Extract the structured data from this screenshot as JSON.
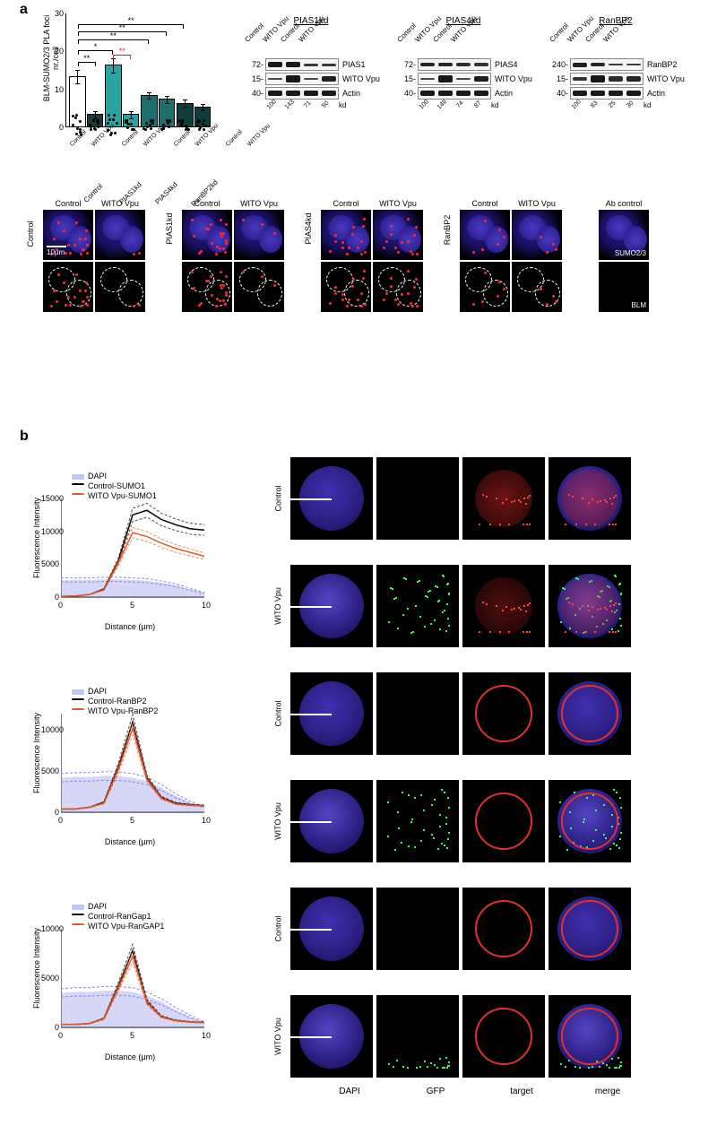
{
  "panel_a": {
    "label": "a",
    "bar_chart": {
      "type": "bar",
      "ylabel": "BLM-SUMO2/3\nPLA foci nr./cell",
      "ylim": [
        0,
        30
      ],
      "ytick_step": 10,
      "groups": [
        "Control",
        "PIAS1kd",
        "PIAS4kd",
        "RanBP2kd"
      ],
      "bar_labels": [
        "Control",
        "WITO Vpu"
      ],
      "colors": {
        "Control": [
          "#ffffff",
          "#1f3a3a"
        ],
        "PIAS1kd": [
          "#2aa3a3",
          "#2aa3a3"
        ],
        "PIAS4kd": [
          "#1f6f6f",
          "#1f6f6f"
        ],
        "RanBP2kd": [
          "#0e3d3d",
          "#0e3d3d"
        ]
      },
      "values": {
        "Control": {
          "Control": 13,
          "WITO Vpu": 3
        },
        "PIAS1kd": {
          "Control": 16,
          "WITO Vpu": 3
        },
        "PIAS4kd": {
          "Control": 8,
          "WITO Vpu": 7
        },
        "RanBP2kd": {
          "Control": 6,
          "WITO Vpu": 5
        }
      },
      "errors": {
        "Control": {
          "Control": 2,
          "WITO Vpu": 1
        },
        "PIAS1kd": {
          "Control": 2,
          "WITO Vpu": 1
        },
        "PIAS4kd": {
          "Control": 1,
          "WITO Vpu": 1
        },
        "RanBP2kd": {
          "Control": 1,
          "WITO Vpu": 1
        }
      },
      "n_points": 10,
      "significance": [
        {
          "from": 0,
          "to": 1,
          "label": "**",
          "y": 17,
          "color": "#000"
        },
        {
          "from": 0,
          "to": 2,
          "label": "*",
          "y": 20,
          "color": "#000"
        },
        {
          "from": 2,
          "to": 3,
          "label": "**",
          "y": 19,
          "color": "#d62728"
        },
        {
          "from": 0,
          "to": 4,
          "label": "**",
          "y": 23,
          "color": "#000"
        },
        {
          "from": 0,
          "to": 5,
          "label": "**",
          "y": 25,
          "color": "#000"
        },
        {
          "from": 0,
          "to": 6,
          "label": "**",
          "y": 27,
          "color": "#000"
        }
      ]
    },
    "blots": [
      {
        "title": "PIAS1kd",
        "lanes": [
          "Control",
          "WITO Vpu",
          "Control",
          "WITO Vpu"
        ],
        "rows": [
          {
            "mw": "72-",
            "label": "PIAS1",
            "intensity": [
              0.9,
              0.9,
              0.4,
              0.4
            ],
            "h": 5
          },
          {
            "mw": "15-",
            "label": "WITO Vpu",
            "intensity": [
              0.1,
              0.95,
              0.1,
              0.8
            ],
            "h": 7
          },
          {
            "mw": "40-",
            "label": "Actin",
            "intensity": [
              0.9,
              0.9,
              0.9,
              0.9
            ],
            "h": 6
          }
        ],
        "kd_values": [
          "100",
          "143",
          "71",
          "50"
        ],
        "kd_label": "kd"
      },
      {
        "title": "PIAS4kd",
        "lanes": [
          "Control",
          "WITO Vpu",
          "Control",
          "WITO Vpu"
        ],
        "rows": [
          {
            "mw": "72-",
            "label": "PIAS4",
            "intensity": [
              0.7,
              0.7,
              0.55,
              0.5
            ],
            "h": 5
          },
          {
            "mw": "15-",
            "label": "WITO Vpu",
            "intensity": [
              0.1,
              0.95,
              0.1,
              0.85
            ],
            "h": 7
          },
          {
            "mw": "40-",
            "label": "Actin",
            "intensity": [
              0.9,
              0.9,
              0.9,
              0.9
            ],
            "h": 6
          }
        ],
        "kd_values": [
          "100",
          "149",
          "74",
          "87"
        ],
        "kd_label": "kd"
      },
      {
        "title": "RanBP2",
        "lanes": [
          "Control",
          "WITO Vpu",
          "Control",
          "WITO Vpu"
        ],
        "rows": [
          {
            "mw": "240-",
            "label": "RanBP2",
            "intensity": [
              0.8,
              0.7,
              0.35,
              0.3
            ],
            "h": 5
          },
          {
            "mw": "15-",
            "label": "WITO Vpu",
            "intensity": [
              0.5,
              0.95,
              0.6,
              0.7
            ],
            "h": 7
          },
          {
            "mw": "40-",
            "label": "Actin",
            "intensity": [
              0.9,
              0.9,
              0.9,
              0.9
            ],
            "h": 6
          }
        ],
        "kd_values": [
          "100",
          "83",
          "25",
          "30"
        ],
        "kd_label": "kd"
      }
    ],
    "micrographs": {
      "scale_label": "10µm",
      "groups": [
        "Control",
        "PIAS1kd",
        "PIAS4kd",
        "RanBP2"
      ],
      "cols": [
        "Control",
        "WITO Vpu"
      ],
      "ab_panel": {
        "label": "Ab control",
        "top": "SUMO2/3",
        "bottom": "BLM"
      },
      "foci_counts": {
        "Control": {
          "Control": 18,
          "WITO Vpu": 2
        },
        "PIAS1kd": {
          "Control": 20,
          "WITO Vpu": 3
        },
        "PIAS4kd": {
          "Control": 15,
          "WITO Vpu": 14
        },
        "RanBP2": {
          "Control": 6,
          "WITO Vpu": 4
        }
      }
    }
  },
  "panel_b": {
    "label": "b",
    "plots": [
      {
        "legend": [
          "DAPI",
          "Control-SUMO1",
          "WITO Vpu-SUMO1"
        ],
        "colors": {
          "DAPI": "#8a8ae6",
          "Control": "#000000",
          "WITO": "#e55a2b"
        },
        "ylabel": "Fluorescence Intensity",
        "xlabel": "Distance (µm)",
        "xlim": [
          0,
          10
        ],
        "ylim": [
          0,
          15000
        ],
        "yticks": [
          0,
          5000,
          10000,
          15000
        ],
        "dapi": [
          2600,
          2600,
          2600,
          2700,
          2700,
          2600,
          2500,
          2200,
          1800,
          1200,
          600
        ],
        "control": [
          100,
          150,
          400,
          1200,
          5500,
          12500,
          13200,
          11800,
          11000,
          10400,
          10200
        ],
        "wito": [
          100,
          150,
          400,
          1100,
          5200,
          9800,
          9200,
          8200,
          7400,
          6800,
          6200
        ]
      },
      {
        "legend": [
          "DAPI",
          "Control-RanBP2",
          "WITO Vpu-RanBP2"
        ],
        "colors": {
          "DAPI": "#8a8ae6",
          "Control": "#000000",
          "WITO": "#e55a2b"
        },
        "ylabel": "Fluorescence Intensity",
        "xlabel": "Distance (µm)",
        "xlim": [
          0,
          10
        ],
        "ylim": [
          0,
          12000
        ],
        "yticks": [
          0,
          5000,
          10000
        ],
        "dapi": [
          4200,
          4300,
          4300,
          4400,
          4400,
          4200,
          3800,
          3000,
          2000,
          1200,
          600
        ],
        "control": [
          400,
          400,
          600,
          1200,
          5500,
          11000,
          4200,
          1800,
          1100,
          900,
          800
        ],
        "wito": [
          400,
          400,
          600,
          1100,
          5200,
          10200,
          4000,
          1700,
          1000,
          850,
          750
        ]
      },
      {
        "legend": [
          "DAPI",
          "Control-RanGap1",
          "WITO Vpu-RanGAP1"
        ],
        "colors": {
          "DAPI": "#8a8ae6",
          "Control": "#000000",
          "WITO": "#e55a2b"
        },
        "ylabel": "Fluorescence Intensity",
        "xlabel": "Distance (µm)",
        "xlim": [
          0,
          10
        ],
        "ylim": [
          0,
          10000
        ],
        "yticks": [
          0,
          5000,
          10000
        ],
        "dapi": [
          3500,
          3600,
          3600,
          3700,
          3700,
          3600,
          3200,
          2600,
          1800,
          1100,
          500
        ],
        "control": [
          300,
          300,
          400,
          900,
          4200,
          7800,
          2600,
          1100,
          700,
          550,
          500
        ],
        "wito": [
          300,
          300,
          400,
          850,
          4000,
          7200,
          2500,
          1050,
          680,
          530,
          480
        ]
      }
    ],
    "micro_cols": [
      "DAPI",
      "GFP",
      "target",
      "merge"
    ],
    "micro_rows": [
      {
        "label": "Control",
        "dapi": "#4030b0",
        "gfp": 0,
        "ring": false,
        "fill_red": 0.5
      },
      {
        "label": "WITO Vpu",
        "dapi": "#5545c5",
        "gfp": 40,
        "ring": false,
        "fill_red": 0.35
      },
      {
        "label": "Control",
        "dapi": "#4030b0",
        "gfp": 0,
        "ring": true,
        "fill_red": 0
      },
      {
        "label": "WITO Vpu",
        "dapi": "#5545c5",
        "gfp": 35,
        "ring": true,
        "fill_red": 0
      },
      {
        "label": "Control",
        "dapi": "#4030b0",
        "gfp": 0,
        "ring": true,
        "fill_red": 0
      },
      {
        "label": "WITO Vpu",
        "dapi": "#5545c5",
        "gfp": 20,
        "ring": true,
        "fill_red": 0
      }
    ]
  }
}
